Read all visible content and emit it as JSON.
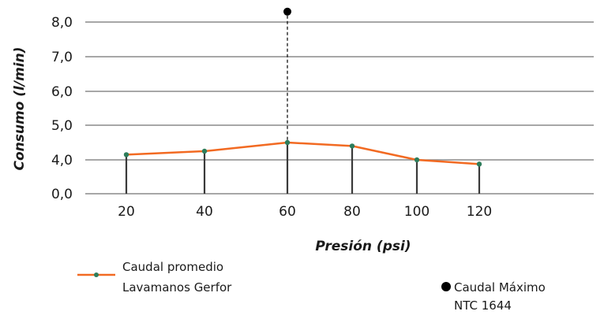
{
  "chart_data": {
    "type": "line",
    "xlabel": "Presión (psi)",
    "ylabel": "Consumo (l/min)",
    "categories": [
      "20",
      "40",
      "60",
      "80",
      "100",
      "120"
    ],
    "y_tick_labels": [
      "0,0",
      "4,0",
      "5,0",
      "6,0",
      "7,0",
      "8,0"
    ],
    "series": [
      {
        "name_lines": [
          "Caudal promedio",
          "Lavamanos Gerfor"
        ],
        "values": [
          4.15,
          4.25,
          4.5,
          4.4,
          4.0,
          3.5
        ],
        "color": "#f26a22",
        "marker_color": "#2e7d5b"
      }
    ],
    "reference_point": {
      "x": "60",
      "y": 8.3,
      "name_lines": [
        "Caudal Máximo",
        "NTC 1644"
      ],
      "color": "#000000"
    },
    "grid": true,
    "gridline_color": "#8a8a8a",
    "stem_color": "#3a3a3a"
  }
}
